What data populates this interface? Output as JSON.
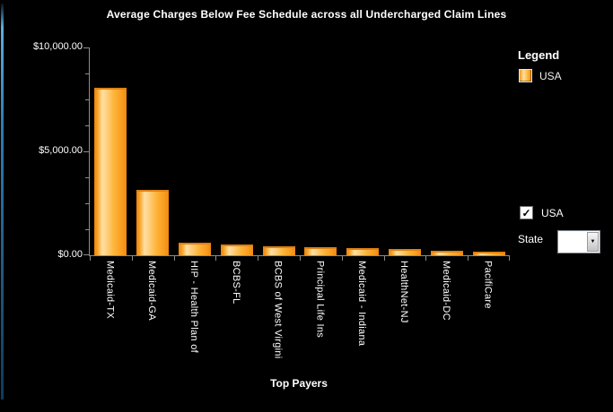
{
  "window": {
    "background_color": "#000000",
    "left_edge_accent_top_color": "#5caede",
    "left_edge_accent_bottom_color": "#0d3a5e"
  },
  "chart_data": {
    "type": "bar",
    "title": "Average Charges Below Fee Schedule across all Undercharged Claim Lines",
    "xlabel": "Top Payers",
    "ylabel": "",
    "ylim": [
      0,
      10000
    ],
    "grid": false,
    "legend_position": "right",
    "y_major_ticks": [
      {
        "value": 10000,
        "label": "$10,000.00"
      },
      {
        "value": 5000,
        "label": "$5,000.00"
      },
      {
        "value": 0,
        "label": "$0.00"
      }
    ],
    "y_minor_tick_step": 1250,
    "categories": [
      "Medicaid-TX",
      "Medicaid-GA",
      "HIP - Health Plan of",
      "BCBS-FL",
      "BCBS of West Virgini",
      "Principal Life Ins",
      "Medicaid - Indiana",
      "HealthNet-NJ",
      "Medicaid-DC",
      "PacifiCare"
    ],
    "series": [
      {
        "name": "USA",
        "color": "#FBA919",
        "values": [
          8050,
          3150,
          600,
          500,
          440,
          400,
          355,
          285,
          200,
          190
        ]
      }
    ]
  },
  "legend": {
    "title": "Legend",
    "items": [
      {
        "label": "USA",
        "swatch_color": "#FBA919"
      }
    ]
  },
  "controls": {
    "usa_checkbox": {
      "label": "USA",
      "checked": true,
      "check_glyph": "✓"
    },
    "state": {
      "label": "State",
      "selected_value": "",
      "arrow_glyph": "▼"
    }
  }
}
